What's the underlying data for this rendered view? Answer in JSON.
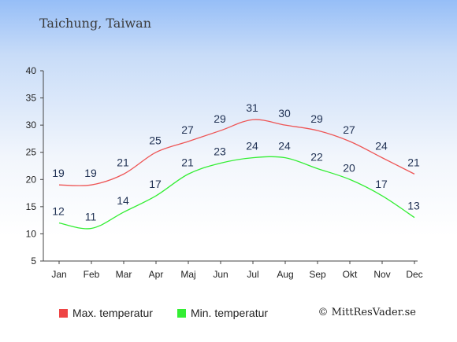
{
  "title": "Taichung, Taiwan",
  "copyright": "© MittResVader.se",
  "chart_data": {
    "type": "line",
    "categories": [
      "Jan",
      "Feb",
      "Mar",
      "Apr",
      "Maj",
      "Jun",
      "Jul",
      "Aug",
      "Sep",
      "Okt",
      "Nov",
      "Dec"
    ],
    "ylim": [
      5,
      40
    ],
    "yticks": [
      5,
      10,
      15,
      20,
      25,
      30,
      35,
      40
    ],
    "grid": false,
    "legend_position": "bottom",
    "series": [
      {
        "name": "Max. temperatur",
        "color": "#ee5555",
        "values": [
          19,
          19,
          21,
          25,
          27,
          29,
          31,
          30,
          29,
          27,
          24,
          21
        ]
      },
      {
        "name": "Min. temperatur",
        "color": "#33ee33",
        "values": [
          12,
          11,
          14,
          17,
          21,
          23,
          24,
          24,
          22,
          20,
          17,
          13
        ]
      }
    ]
  }
}
